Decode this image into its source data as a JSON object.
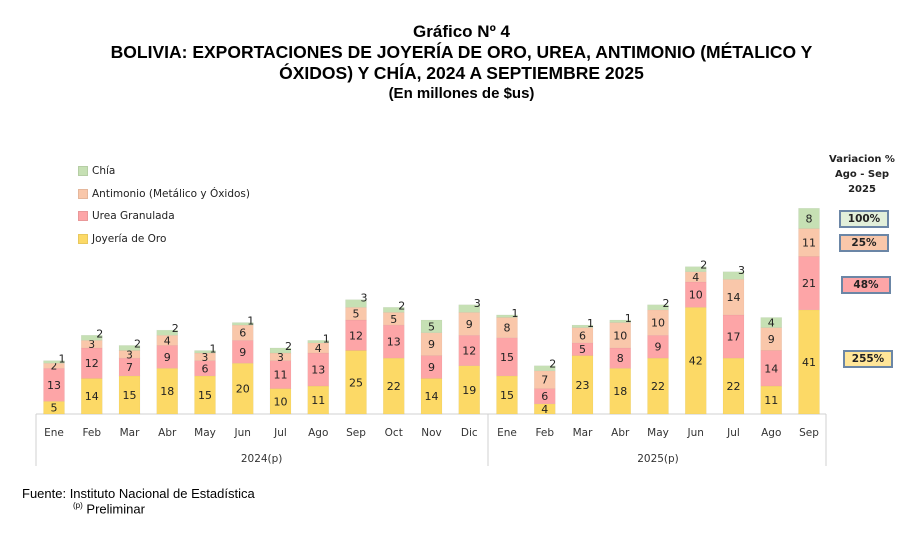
{
  "header": {
    "chart_number": "Gráfico Nº 4",
    "title_line1": "BOLIVIA: EXPORTACIONES DE JOYERÍA DE ORO, UREA, ANTIMONIO (MÉTALICO Y",
    "title_line2": "ÓXIDOS) Y CHÍA, 2024 A SEPTIEMBRE 2025",
    "subtitle": "(En millones de $us)"
  },
  "colors": {
    "joyeria": "#fcd966",
    "urea": "#fda5a7",
    "antimonio": "#f9c7aa",
    "chia": "#c6e0b4"
  },
  "chart_data": {
    "type": "bar",
    "stacked": true,
    "title": "BOLIVIA: EXPORTACIONES DE JOYERÍA DE ORO, UREA, ANTIMONIO (MÉTALICO Y ÓXIDOS) Y CHÍA, 2024 A SEPTIEMBRE 2025",
    "ylabel": "En millones de $us",
    "legend_position": "top-left",
    "categories": [
      "Ene",
      "Feb",
      "Mar",
      "Abr",
      "May",
      "Jun",
      "Jul",
      "Ago",
      "Sep",
      "Oct",
      "Nov",
      "Dic",
      "Ene",
      "Feb",
      "Mar",
      "Abr",
      "May",
      "Jun",
      "Jul",
      "Ago",
      "Sep"
    ],
    "groups": [
      {
        "label": "2024(p)",
        "start": 0,
        "count": 12
      },
      {
        "label": "2025(p)",
        "start": 12,
        "count": 9
      }
    ],
    "series": [
      {
        "name": "Joyería de Oro",
        "key": "joyeria",
        "values": [
          5,
          14,
          15,
          18,
          15,
          20,
          10,
          11,
          25,
          22,
          14,
          19,
          15,
          4,
          23,
          18,
          22,
          42,
          22,
          11,
          41
        ]
      },
      {
        "name": "Urea Granulada",
        "key": "urea",
        "values": [
          13,
          12,
          7,
          9,
          6,
          9,
          11,
          13,
          12,
          13,
          9,
          12,
          15,
          6,
          5,
          8,
          9,
          10,
          17,
          14,
          21
        ]
      },
      {
        "name": "Antimonio (Metálico y Óxidos)",
        "key": "antimonio",
        "values": [
          2,
          3,
          3,
          4,
          3,
          6,
          3,
          4,
          5,
          5,
          9,
          9,
          8,
          7,
          6,
          10,
          10,
          4,
          14,
          9,
          11
        ]
      },
      {
        "name": "Chía",
        "key": "chia",
        "values": [
          1,
          2,
          2,
          2,
          1,
          1,
          2,
          1,
          3,
          2,
          5,
          3,
          1,
          2,
          1,
          1,
          2,
          2,
          3,
          4,
          8
        ]
      }
    ],
    "legend_order": [
      "Chía",
      "Antimonio (Metálico y Óxidos)",
      "Urea Granulada",
      "Joyería de Oro"
    ]
  },
  "variation": {
    "header_line1": "Variacion %",
    "header_line2": "Ago - Sep",
    "header_line3": "2025",
    "chia": "100%",
    "antimonio": "25%",
    "urea": "48%",
    "joyeria": "255%"
  },
  "footer": {
    "source": "Fuente: Instituto Nacional de Estadística",
    "note_mark": "(p)",
    "note": " Preliminar"
  }
}
